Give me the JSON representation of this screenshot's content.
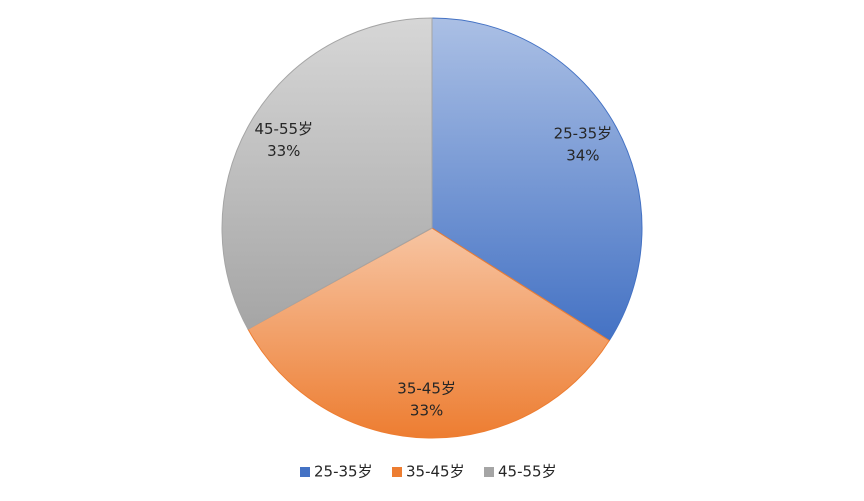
{
  "chart_data": {
    "type": "pie",
    "categories": [
      "25-35岁",
      "35-45岁",
      "45-55岁"
    ],
    "values": [
      34,
      33,
      33
    ],
    "value_labels": [
      "34%",
      "33%",
      "33%"
    ],
    "colors": [
      "#4472c4",
      "#ed7d31",
      "#a5a5a5"
    ],
    "legend": "bottom"
  }
}
